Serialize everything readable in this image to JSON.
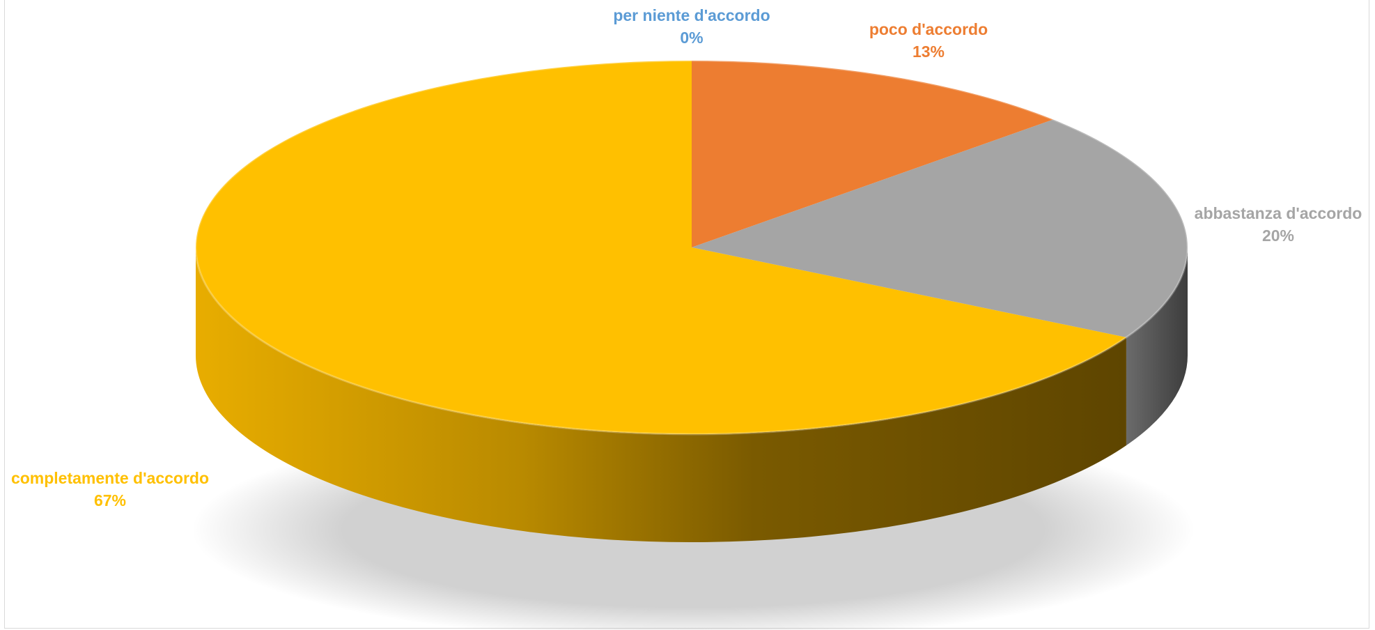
{
  "chart_data": {
    "type": "pie",
    "three_d": true,
    "legend": "none",
    "slices": [
      {
        "label": "per niente d'accordo",
        "value": 0,
        "value_label": "0%",
        "color": "#5B9BD5"
      },
      {
        "label": "poco d'accordo",
        "value": 13,
        "value_label": "13%",
        "color": "#ED7D31"
      },
      {
        "label": "abbastanza d'accordo",
        "value": 20,
        "value_label": "20%",
        "color": "#A5A5A5"
      },
      {
        "label": "completamente d'accordo",
        "value": 67,
        "value_label": "67%",
        "color": "#FFC000"
      }
    ]
  }
}
